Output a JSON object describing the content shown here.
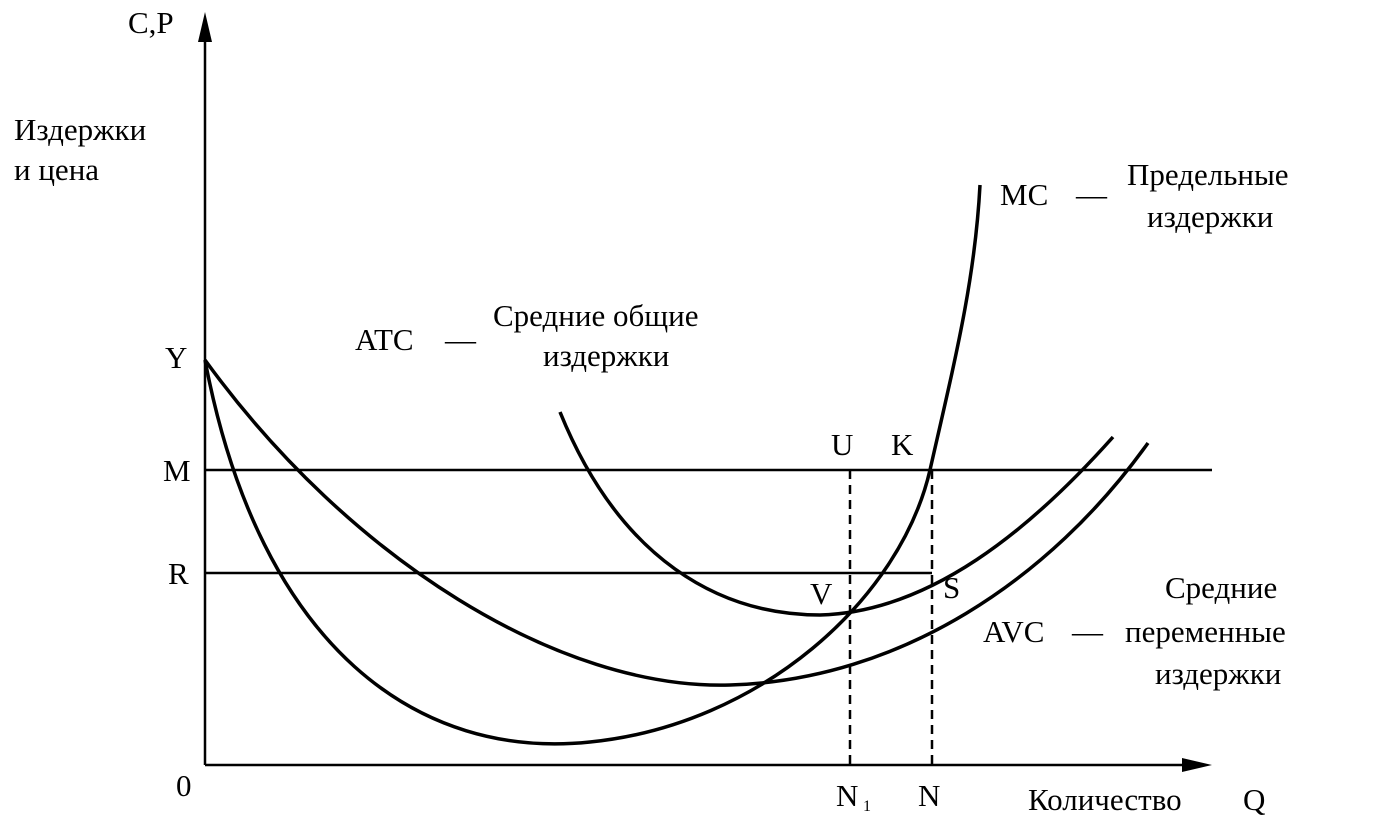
{
  "axes": {
    "y_label": "C,P",
    "y_title": [
      "Издержки",
      "и цена"
    ],
    "origin": "0",
    "x_title": "Количество",
    "x_label": "Q"
  },
  "levels": {
    "y": "Y",
    "m": "M",
    "r": "R"
  },
  "quantities": {
    "n1": {
      "label": "N",
      "subscript": "1"
    },
    "n": "N"
  },
  "points": {
    "u": "U",
    "k": "K",
    "v": "V",
    "s": "S"
  },
  "curves": {
    "mc": {
      "abbr": "MC",
      "dash": "—",
      "lines": [
        "Предельные",
        "издержки"
      ]
    },
    "atc": {
      "abbr": "ATC",
      "dash": "—",
      "lines": [
        "Средние общие",
        "издержки"
      ]
    },
    "avc": {
      "abbr": "AVC",
      "dash": "—",
      "lines": [
        "Средние",
        "переменные",
        "издержки"
      ]
    }
  }
}
